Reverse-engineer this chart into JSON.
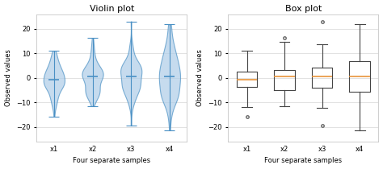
{
  "title_violin": "Violin plot",
  "title_box": "Box plot",
  "xlabel": "Four separate samples",
  "ylabel": "Observed values",
  "xtick_labels": [
    "x1",
    "x2",
    "x3",
    "x4"
  ],
  "ylim": [
    -26,
    26
  ],
  "yticks": [
    -20,
    -10,
    0,
    10,
    20
  ],
  "violin_color": "#aecde8",
  "violin_edge_color": "#4a90c4",
  "median_color_violin": "#4a90c4",
  "median_color_box": "#e8943a",
  "box_edge_color": "#444444",
  "whisker_color": "#444444",
  "flier_color": "#666666",
  "background_color": "#ffffff",
  "grid_color": "#dddddd",
  "figsize": [
    4.74,
    2.1
  ],
  "dpi": 100,
  "random_seed": 42
}
